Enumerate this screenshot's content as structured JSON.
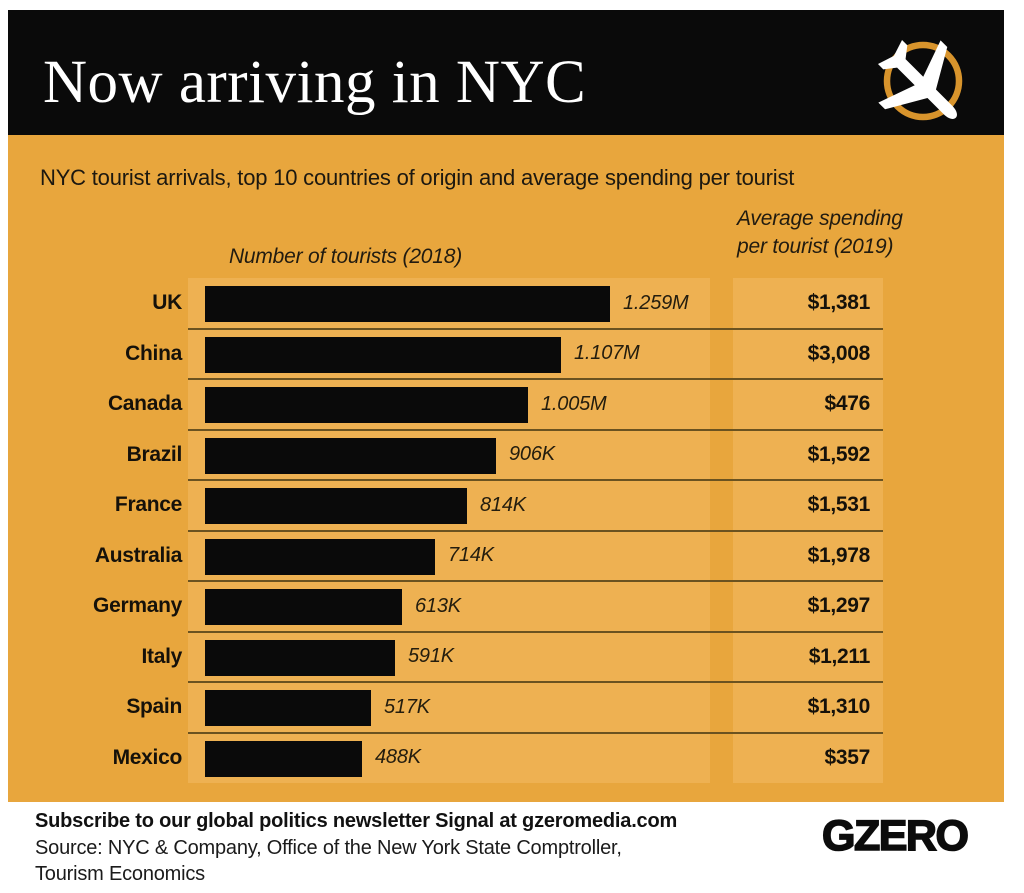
{
  "header": {
    "title": "Now arriving in NYC",
    "icon": "landing-airplane-in-circle"
  },
  "chart": {
    "subtitle": "NYC tourist arrivals, top 10 countries of origin and average spending per tourist",
    "col1_header": "Number of tourists (2018)",
    "col2_header_line1": "Average spending",
    "col2_header_line2": "per tourist (2019)"
  },
  "chart_data": {
    "type": "bar",
    "orientation": "horizontal",
    "title": "Now arriving in NYC",
    "subtitle": "NYC tourist arrivals, top 10 countries of origin and average spending per tourist",
    "categories": [
      "UK",
      "China",
      "Canada",
      "Brazil",
      "France",
      "Australia",
      "Germany",
      "Italy",
      "Spain",
      "Mexico"
    ],
    "series": [
      {
        "name": "Number of tourists (2018)",
        "unit": "tourists",
        "values": [
          1259000,
          1107000,
          1005000,
          906000,
          814000,
          714000,
          613000,
          591000,
          517000,
          488000
        ],
        "labels": [
          "1.259M",
          "1.107M",
          "1.005M",
          "906K",
          "814K",
          "714K",
          "613K",
          "591K",
          "517K",
          "488K"
        ]
      },
      {
        "name": "Average spending per tourist (2019)",
        "unit": "USD",
        "values": [
          1381,
          3008,
          476,
          1592,
          1531,
          1978,
          1297,
          1211,
          1310,
          357
        ],
        "labels": [
          "$1,381",
          "$3,008",
          "$476",
          "$1,592",
          "$1,531",
          "$1,978",
          "$1,297",
          "$1,211",
          "$1,310",
          "$357"
        ]
      }
    ],
    "xlim": [
      0,
      1259000
    ],
    "grid": false,
    "legend": "none",
    "bar_color": "#0a0a0a"
  },
  "footer": {
    "subscribe": "Subscribe to our global politics newsletter Signal at gzeromedia.com",
    "source_line1": "Source: NYC & Company, Office of the New York State Comptroller,",
    "source_line2": "Tourism Economics",
    "logo": "GZERO"
  },
  "colors": {
    "background": "#e8a63d",
    "strip": "#eeb152",
    "bar": "#0a0a0a",
    "header_bg": "#0a0a0a",
    "ring": "#d8942c",
    "separator": "#6a5220",
    "title_text": "#ffffff"
  }
}
